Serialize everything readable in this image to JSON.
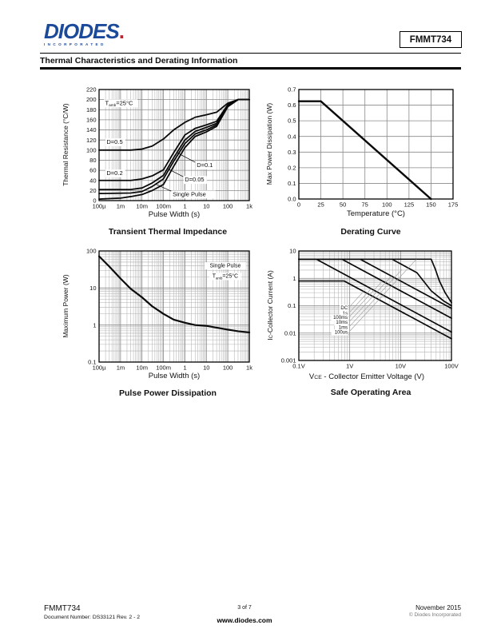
{
  "header": {
    "logo_text": "DIODES",
    "logo_period": ".",
    "logo_sub": "INCORPORATED",
    "logo_blue": "#1b4a9b",
    "logo_red": "#c8202f",
    "part_number": "FMMT734",
    "section_title": "Thermal Characteristics and Derating Information"
  },
  "footer": {
    "part": "FMMT734",
    "doc_number": "Document Number: DS33121 Rev. 2 - 2",
    "page": "3 of 7",
    "website": "www.diodes.com",
    "date": "November 2015",
    "copyright": "© Diodes Incorporated"
  },
  "chart_data": [
    {
      "type": "line",
      "title": "Transient Thermal Impedance",
      "xlabel": "Pulse Width (s)",
      "ylabel": "Thermal Resistance (°C/W)",
      "xscale": "log",
      "xlim": [
        0.0001,
        1000
      ],
      "yscale": "linear",
      "ylim": [
        0,
        220
      ],
      "grid": true,
      "xticks": [
        {
          "v": 0.0001,
          "l": "100µ"
        },
        {
          "v": 0.001,
          "l": "1m"
        },
        {
          "v": 0.01,
          "l": "10m"
        },
        {
          "v": 0.1,
          "l": "100m"
        },
        {
          "v": 1,
          "l": "1"
        },
        {
          "v": 10,
          "l": "10"
        },
        {
          "v": 100,
          "l": "100"
        },
        {
          "v": 1000,
          "l": "1k"
        }
      ],
      "yticks": [
        {
          "v": 0,
          "l": "0"
        },
        {
          "v": 20,
          "l": "20"
        },
        {
          "v": 40,
          "l": "40"
        },
        {
          "v": 60,
          "l": "60"
        },
        {
          "v": 80,
          "l": "80"
        },
        {
          "v": 100,
          "l": "100"
        },
        {
          "v": 120,
          "l": "120"
        },
        {
          "v": 140,
          "l": "140"
        },
        {
          "v": 160,
          "l": "160"
        },
        {
          "v": 180,
          "l": "180"
        },
        {
          "v": 200,
          "l": "200"
        },
        {
          "v": 220,
          "l": "220"
        }
      ],
      "series": [
        {
          "name": "D=0.5",
          "points": [
            [
              0.0001,
              100
            ],
            [
              0.003,
              100
            ],
            [
              0.01,
              102
            ],
            [
              0.03,
              108
            ],
            [
              0.1,
              122
            ],
            [
              0.3,
              140
            ],
            [
              1,
              155
            ],
            [
              3,
              165
            ],
            [
              10,
              170
            ],
            [
              30,
              175
            ],
            [
              100,
              193
            ],
            [
              300,
              200
            ],
            [
              1000,
              200
            ]
          ]
        },
        {
          "name": "D=0.2",
          "points": [
            [
              0.0001,
              40
            ],
            [
              0.003,
              40
            ],
            [
              0.01,
              43
            ],
            [
              0.03,
              49
            ],
            [
              0.1,
              61
            ],
            [
              0.3,
              95
            ],
            [
              1,
              130
            ],
            [
              3,
              143
            ],
            [
              10,
              150
            ],
            [
              30,
              157
            ],
            [
              100,
              190
            ],
            [
              300,
              200
            ],
            [
              1000,
              200
            ]
          ]
        },
        {
          "name": "D=0.1",
          "points": [
            [
              0.0001,
              22
            ],
            [
              0.003,
              22
            ],
            [
              0.01,
              25
            ],
            [
              0.03,
              35
            ],
            [
              0.1,
              50
            ],
            [
              0.3,
              85
            ],
            [
              1,
              120
            ],
            [
              3,
              137
            ],
            [
              10,
              145
            ],
            [
              30,
              153
            ],
            [
              100,
              188
            ],
            [
              300,
              200
            ],
            [
              1000,
              200
            ]
          ]
        },
        {
          "name": "D=0.05",
          "points": [
            [
              0.0001,
              14
            ],
            [
              0.003,
              15
            ],
            [
              0.01,
              18
            ],
            [
              0.03,
              28
            ],
            [
              0.1,
              43
            ],
            [
              0.3,
              78
            ],
            [
              1,
              113
            ],
            [
              3,
              132
            ],
            [
              10,
              140
            ],
            [
              30,
              150
            ],
            [
              100,
              187
            ],
            [
              300,
              200
            ],
            [
              1000,
              200
            ]
          ]
        },
        {
          "name": "Single Pulse",
          "points": [
            [
              0.0001,
              3
            ],
            [
              0.001,
              5
            ],
            [
              0.003,
              8
            ],
            [
              0.01,
              12
            ],
            [
              0.03,
              20
            ],
            [
              0.1,
              32
            ],
            [
              0.3,
              68
            ],
            [
              1,
              105
            ],
            [
              3,
              127
            ],
            [
              10,
              136
            ],
            [
              30,
              147
            ],
            [
              100,
              186
            ],
            [
              300,
              200
            ],
            [
              1000,
              200
            ]
          ]
        }
      ],
      "annotations": [
        {
          "fx": 0.04,
          "fy": 0.88,
          "anchor": "start",
          "fs": 7.5,
          "bg": true,
          "parts": [
            {
              "t": "T"
            },
            {
              "t": "amb",
              "sub": true
            },
            {
              "t": "=25°C"
            }
          ]
        }
      ],
      "labels": [
        {
          "fx": 0.05,
          "fy": 0.53,
          "anchor": "start",
          "fs": 7.5,
          "bg": true,
          "parts": [
            {
              "t": "D=0.5"
            }
          ]
        },
        {
          "fx": 0.05,
          "fy": 0.25,
          "anchor": "start",
          "fs": 7.5,
          "bg": true,
          "parts": [
            {
              "t": "D=0.2"
            }
          ]
        },
        {
          "fx": 0.65,
          "fy": 0.32,
          "anchor": "start",
          "fs": 7.5,
          "bg": true,
          "parts": [
            {
              "t": "D=0.1"
            }
          ]
        },
        {
          "fx": 0.57,
          "fy": 0.19,
          "anchor": "start",
          "fs": 7.5,
          "bg": true,
          "parts": [
            {
              "t": "D=0.05"
            }
          ]
        },
        {
          "fx": 0.49,
          "fy": 0.06,
          "anchor": "start",
          "fs": 7.5,
          "bg": true,
          "parts": [
            {
              "t": "Single Pulse"
            }
          ]
        }
      ],
      "leaders": [
        {
          "f": [
            0.64,
            0.345,
            0.52,
            0.43
          ],
          "c": "#000",
          "w": 0.7
        },
        {
          "f": [
            0.56,
            0.215,
            0.46,
            0.285
          ],
          "c": "#000",
          "w": 0.7
        },
        {
          "f": [
            0.48,
            0.085,
            0.375,
            0.15
          ],
          "c": "#000",
          "w": 0.7
        }
      ]
    },
    {
      "type": "line",
      "title": "Derating Curve",
      "xlabel": "Temperature (°C)",
      "ylabel": "Max Power Dissipation (W)",
      "xscale": "linear",
      "xlim": [
        0,
        175
      ],
      "yscale": "linear",
      "ylim": [
        0,
        0.7
      ],
      "grid": true,
      "xticks": [
        {
          "v": 0,
          "l": "0"
        },
        {
          "v": 25,
          "l": "25"
        },
        {
          "v": 50,
          "l": "50"
        },
        {
          "v": 75,
          "l": "75"
        },
        {
          "v": 100,
          "l": "100"
        },
        {
          "v": 125,
          "l": "125"
        },
        {
          "v": 150,
          "l": "150"
        },
        {
          "v": 175,
          "l": "175"
        }
      ],
      "yticks": [
        {
          "v": 0,
          "l": "0.0"
        },
        {
          "v": 0.1,
          "l": "0.1"
        },
        {
          "v": 0.2,
          "l": "0.2"
        },
        {
          "v": 0.3,
          "l": "0.3"
        },
        {
          "v": 0.4,
          "l": "0.4"
        },
        {
          "v": 0.5,
          "l": "0.5"
        },
        {
          "v": 0.6,
          "l": "0.6"
        },
        {
          "v": 0.7,
          "l": "0.7"
        }
      ],
      "series": [
        {
          "name": "Max Power Derating",
          "w": 2.4,
          "points": [
            [
              0,
              0.625
            ],
            [
              25,
              0.625
            ],
            [
              150,
              0
            ]
          ]
        }
      ],
      "annotations": [],
      "labels": [],
      "leaders": []
    },
    {
      "type": "line",
      "title": "Pulse Power Dissipation",
      "xlabel": "Pulse Width (s)",
      "ylabel": "Maximum Power (W)",
      "xscale": "log",
      "xlim": [
        0.0001,
        1000
      ],
      "yscale": "log",
      "ylim": [
        0.1,
        100
      ],
      "grid": true,
      "xticks": [
        {
          "v": 0.0001,
          "l": "100µ"
        },
        {
          "v": 0.001,
          "l": "1m"
        },
        {
          "v": 0.01,
          "l": "10m"
        },
        {
          "v": 0.1,
          "l": "100m"
        },
        {
          "v": 1,
          "l": "1"
        },
        {
          "v": 10,
          "l": "10"
        },
        {
          "v": 100,
          "l": "100"
        },
        {
          "v": 1000,
          "l": "1k"
        }
      ],
      "yticks": [
        {
          "v": 0.1,
          "l": "0.1"
        },
        {
          "v": 1,
          "l": "1"
        },
        {
          "v": 10,
          "l": "10"
        },
        {
          "v": 100,
          "l": "100"
        }
      ],
      "series": [
        {
          "name": "Single Pulse",
          "w": 2.2,
          "points": [
            [
              0.0001,
              72
            ],
            [
              0.0003,
              38
            ],
            [
              0.001,
              18
            ],
            [
              0.003,
              9.5
            ],
            [
              0.01,
              5.6
            ],
            [
              0.03,
              3.2
            ],
            [
              0.1,
              2.0
            ],
            [
              0.3,
              1.4
            ],
            [
              1,
              1.15
            ],
            [
              3,
              1.0
            ],
            [
              10,
              0.95
            ],
            [
              30,
              0.85
            ],
            [
              100,
              0.75
            ],
            [
              300,
              0.68
            ],
            [
              1000,
              0.63
            ]
          ]
        }
      ],
      "annotations": [
        {
          "fx": 0.84,
          "fy": 0.87,
          "anchor": "middle",
          "fs": 7,
          "bg": true,
          "parts": [
            {
              "t": "Single Pulse"
            }
          ]
        },
        {
          "fx": 0.84,
          "fy": 0.775,
          "anchor": "middle",
          "fs": 7,
          "bg": true,
          "parts": [
            {
              "t": "T"
            },
            {
              "t": "amb",
              "sub": true
            },
            {
              "t": "=25°C"
            }
          ]
        }
      ],
      "labels": [],
      "leaders": []
    },
    {
      "type": "line",
      "title": "Safe Operating Area",
      "xlabel_parts": [
        {
          "t": "V"
        },
        {
          "t": "CE",
          "small": true
        },
        {
          "t": " - Collector Emitter Voltage (V)"
        }
      ],
      "ylabel_parts": [
        {
          "t": "I"
        },
        {
          "t": "C",
          "small": true
        },
        {
          "t": "-Collector Current (A)"
        }
      ],
      "xscale": "log",
      "xlim": [
        0.1,
        100
      ],
      "yscale": "log",
      "ylim": [
        0.001,
        10
      ],
      "grid": true,
      "xticks": [
        {
          "v": 0.1,
          "l": "0.1V"
        },
        {
          "v": 1,
          "l": "1V"
        },
        {
          "v": 10,
          "l": "10V"
        },
        {
          "v": 100,
          "l": "100V"
        }
      ],
      "yticks": [
        {
          "v": 0.001,
          "l": "0.001"
        },
        {
          "v": 0.01,
          "l": "0.01"
        },
        {
          "v": 0.1,
          "l": "0.1"
        },
        {
          "v": 1,
          "l": "1"
        },
        {
          "v": 10,
          "l": "10"
        }
      ],
      "series": [
        {
          "name": "100us",
          "w": 1.7,
          "points": [
            [
              0.1,
              5
            ],
            [
              40,
              5
            ],
            [
              48,
              2.2
            ],
            [
              58,
              0.8
            ],
            [
              75,
              0.3
            ],
            [
              100,
              0.13
            ]
          ]
        },
        {
          "name": "1ms",
          "w": 1.7,
          "points": [
            [
              0.1,
              5
            ],
            [
              6.8,
              5
            ],
            [
              21,
              1.6
            ],
            [
              40,
              0.35
            ],
            [
              70,
              0.15
            ],
            [
              100,
              0.1
            ]
          ]
        },
        {
          "name": "10ms",
          "w": 1.7,
          "points": [
            [
              0.1,
              5
            ],
            [
              1.6,
              5
            ],
            [
              100,
              0.08
            ]
          ]
        },
        {
          "name": "100ms",
          "w": 1.7,
          "points": [
            [
              0.1,
              5
            ],
            [
              0.7,
              5
            ],
            [
              100,
              0.035
            ]
          ]
        },
        {
          "name": "1s",
          "w": 1.7,
          "points": [
            [
              0.1,
              5
            ],
            [
              0.22,
              5
            ],
            [
              100,
              0.011
            ]
          ]
        },
        {
          "name": "DC",
          "w": 1.7,
          "points": [
            [
              0.1,
              0.8
            ],
            [
              0.78,
              0.8
            ],
            [
              100,
              0.00625
            ]
          ]
        }
      ],
      "annotations": [],
      "labels": [
        {
          "fx": 0.32,
          "fy": 0.484,
          "anchor": "end",
          "fs": 6,
          "bg": true,
          "parts": [
            {
              "t": "DC"
            }
          ]
        },
        {
          "fx": 0.32,
          "fy": 0.433,
          "anchor": "end",
          "fs": 6,
          "bg": true,
          "parts": [
            {
              "t": "1s"
            }
          ]
        },
        {
          "fx": 0.32,
          "fy": 0.395,
          "anchor": "end",
          "fs": 6,
          "bg": true,
          "parts": [
            {
              "t": "100ms"
            }
          ]
        },
        {
          "fx": 0.32,
          "fy": 0.35,
          "anchor": "end",
          "fs": 6,
          "bg": true,
          "parts": [
            {
              "t": "10ms"
            }
          ]
        },
        {
          "fx": 0.32,
          "fy": 0.304,
          "anchor": "end",
          "fs": 6,
          "bg": true,
          "parts": [
            {
              "t": "1ms"
            }
          ]
        },
        {
          "fx": 0.32,
          "fy": 0.26,
          "anchor": "end",
          "fs": 6,
          "bg": true,
          "parts": [
            {
              "t": "100us"
            }
          ]
        }
      ],
      "leaders": [
        {
          "f": [
            0.335,
            0.494,
            0.424,
            0.631
          ],
          "c": "#9a9a9a",
          "w": 0.6
        },
        {
          "f": [
            0.335,
            0.443,
            0.474,
            0.656
          ],
          "c": "#9a9a9a",
          "w": 0.6
        },
        {
          "f": [
            0.335,
            0.405,
            0.54,
            0.714
          ],
          "c": "#9a9a9a",
          "w": 0.6
        },
        {
          "f": [
            0.335,
            0.36,
            0.607,
            0.77
          ],
          "c": "#9a9a9a",
          "w": 0.6
        },
        {
          "f": [
            0.335,
            0.314,
            0.675,
            0.83
          ],
          "c": "#9a9a9a",
          "w": 0.6
        },
        {
          "f": [
            0.335,
            0.27,
            0.77,
            0.924
          ],
          "c": "#9a9a9a",
          "w": 0.6
        }
      ]
    }
  ]
}
